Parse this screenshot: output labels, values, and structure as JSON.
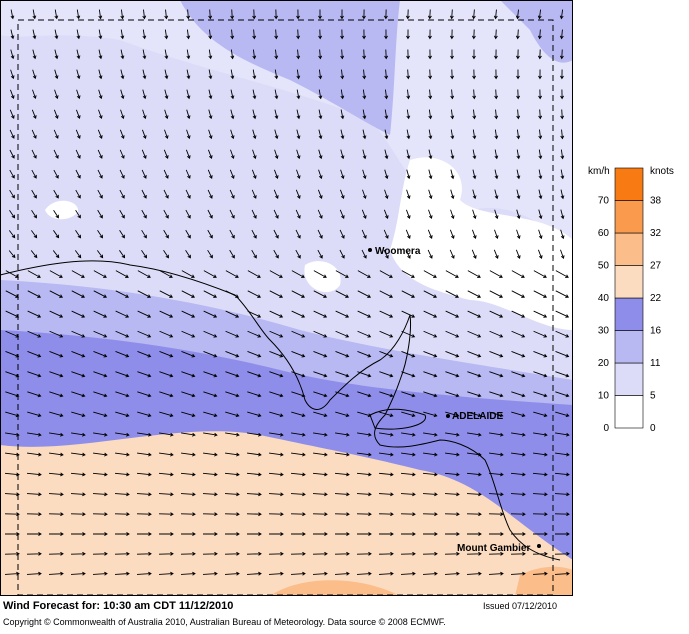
{
  "map": {
    "places": [
      "Woomera",
      "ADELAIDE",
      "Mount Gambier"
    ]
  },
  "legend": {
    "left_unit": "km/h",
    "right_unit": "knots",
    "kmh": [
      0,
      10,
      20,
      30,
      40,
      50,
      60,
      70
    ],
    "knots": [
      0,
      5,
      11,
      16,
      22,
      27,
      32,
      38
    ],
    "colors": [
      "#ffffff",
      "#dcdcf8",
      "#b8b8f2",
      "#8e8eea",
      "#fcdcc0",
      "#fbbd8a",
      "#f99a4c",
      "#f77a12"
    ]
  },
  "footer": {
    "title": "Wind Forecast for: 10:30 am CDT 11/12/2010",
    "issued": "Issued 07/12/2010",
    "copyright": "Copyright © Commonwealth of Australia 2010, Australian Bureau of Meteorology. Data source © 2008 ECMWF."
  }
}
